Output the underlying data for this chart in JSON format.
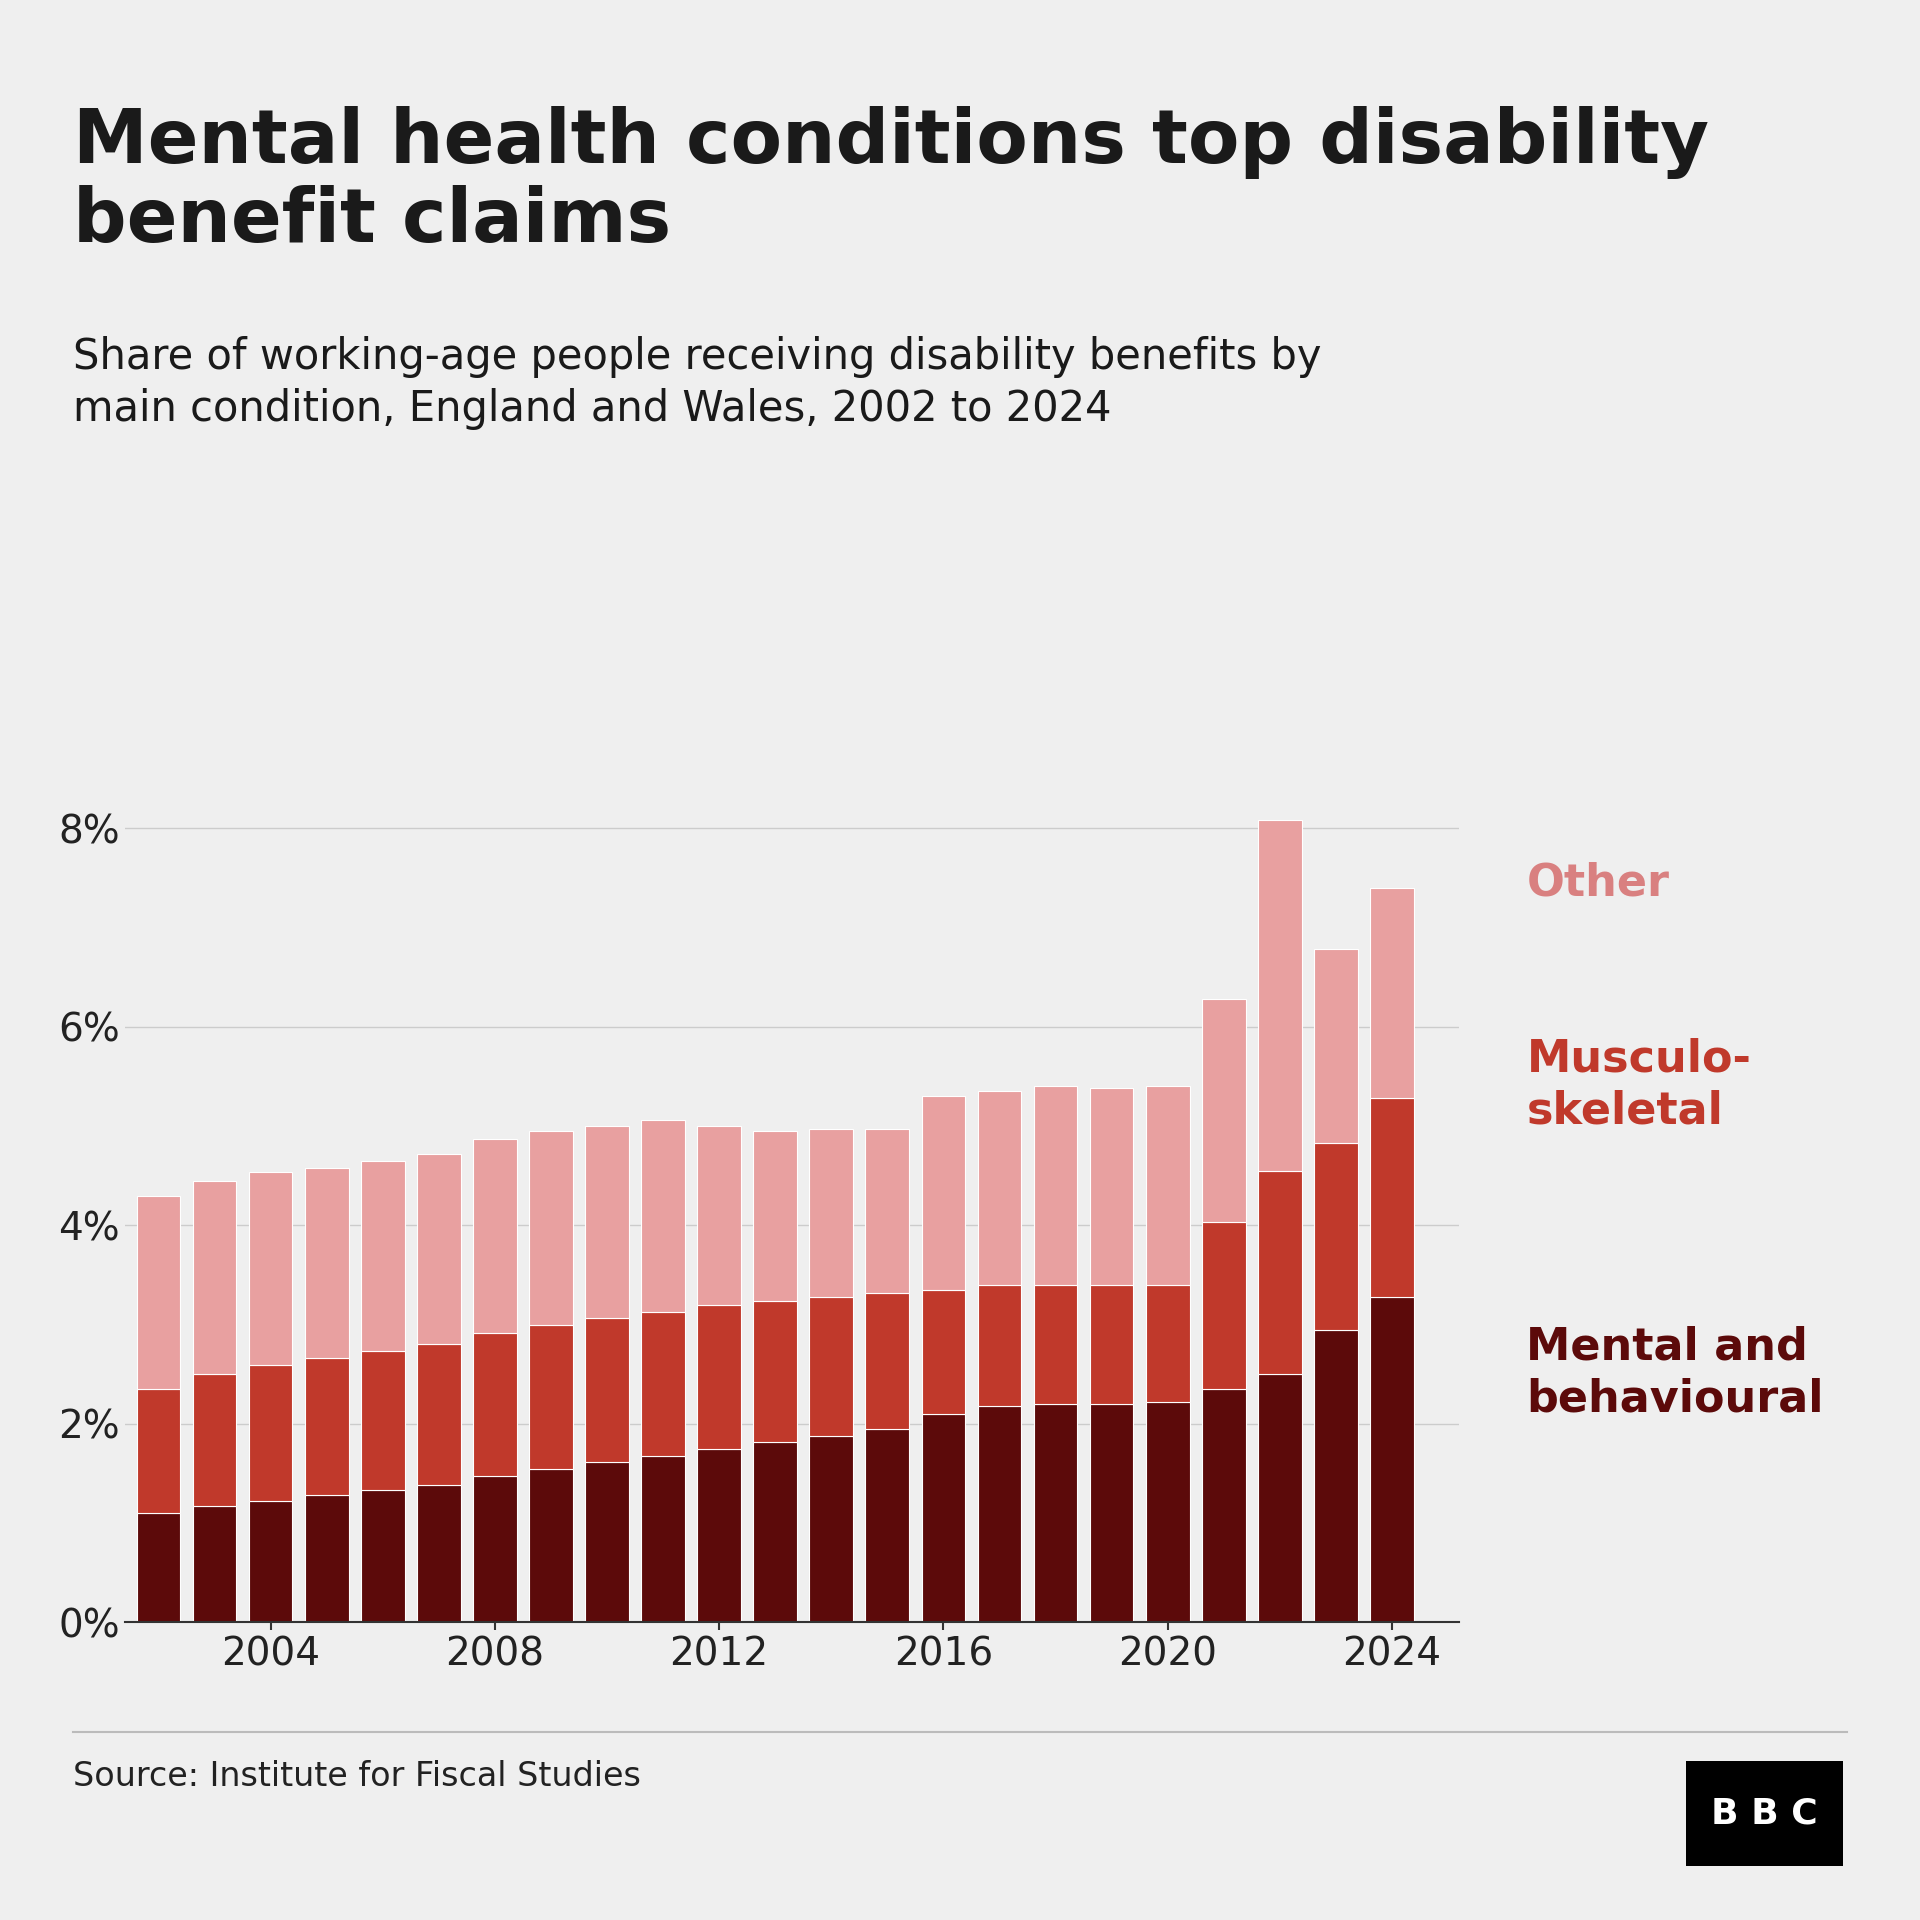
{
  "years": [
    2002,
    2003,
    2004,
    2005,
    2006,
    2007,
    2008,
    2009,
    2010,
    2011,
    2012,
    2013,
    2014,
    2015,
    2016,
    2017,
    2018,
    2019,
    2020,
    2021,
    2022,
    2023,
    2024
  ],
  "mental_behavioural": [
    1.1,
    1.17,
    1.22,
    1.28,
    1.33,
    1.38,
    1.47,
    1.55,
    1.62,
    1.68,
    1.75,
    1.82,
    1.88,
    1.95,
    2.1,
    2.18,
    2.2,
    2.2,
    2.22,
    2.35,
    2.5,
    2.95,
    3.28
  ],
  "musculoskeletal": [
    1.25,
    1.33,
    1.37,
    1.38,
    1.4,
    1.42,
    1.45,
    1.45,
    1.45,
    1.45,
    1.45,
    1.42,
    1.4,
    1.37,
    1.25,
    1.22,
    1.2,
    1.2,
    1.18,
    1.68,
    2.05,
    1.88,
    2.0
  ],
  "other": [
    0.98,
    0.95,
    0.95,
    0.92,
    0.92,
    0.92,
    0.95,
    0.95,
    0.93,
    0.93,
    0.93,
    0.92,
    0.9,
    0.9,
    0.97,
    0.97,
    0.98,
    0.98,
    1.02,
    2.28,
    3.08,
    1.95,
    2.12
  ],
  "color_mental": "#5c0a0a",
  "color_musculo": "#c0392b",
  "color_other": "#e8a0a0",
  "title": "Mental health conditions top disability\nbenefit claims",
  "subtitle": "Share of working-age people receiving disability benefits by\nmain condition, England and Wales, 2002 to 2024",
  "source": "Source: Institute for Fiscal Studies",
  "background_color": "#efefef",
  "ylim": [
    0,
    8.8
  ],
  "yticks": [
    0,
    2,
    4,
    6,
    8
  ],
  "ytick_labels": [
    "0%",
    "2%",
    "4%",
    "6%",
    "8%"
  ]
}
